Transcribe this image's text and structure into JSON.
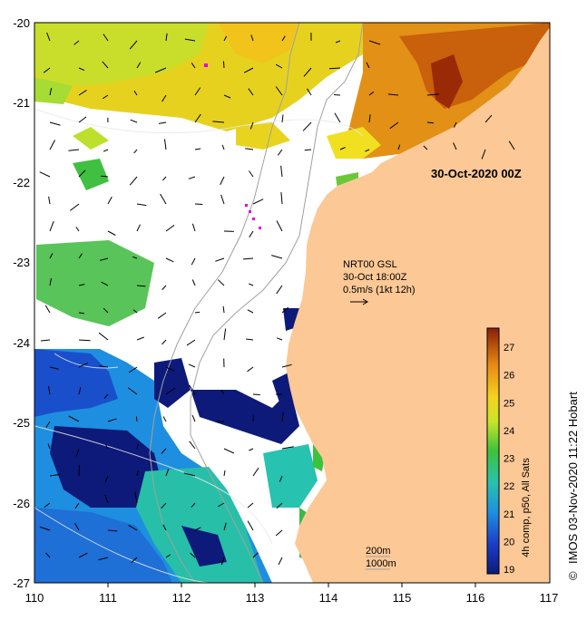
{
  "map": {
    "lon_ticks": [
      "110",
      "111",
      "112",
      "113",
      "114",
      "115",
      "116",
      "117"
    ],
    "lat_ticks": [
      "-20",
      "-21",
      "-22",
      "-23",
      "-24",
      "-25",
      "-26",
      "-27"
    ],
    "date_label": "30-Oct-2020 00Z",
    "current_title": "NRT00 GSL",
    "current_time": "30-Oct 18:00Z",
    "current_scale": "0.5m/s (1kt 12h)",
    "contour_200": "200m",
    "contour_1000": "1000m",
    "colorbar_label": "4h comp, p50, All Sats",
    "colorbar_ticks": [
      "19",
      "20",
      "21",
      "22",
      "23",
      "24",
      "25",
      "26",
      "27"
    ],
    "copyright_symbol": "©",
    "credit": "IMOS 03-Nov-2020 11:22 Hobart"
  },
  "colors": {
    "land": "#fbc896",
    "no_data": "#ffffff",
    "sst_cold": "#0d1a7a",
    "sst_warm": "#9a2a05"
  }
}
